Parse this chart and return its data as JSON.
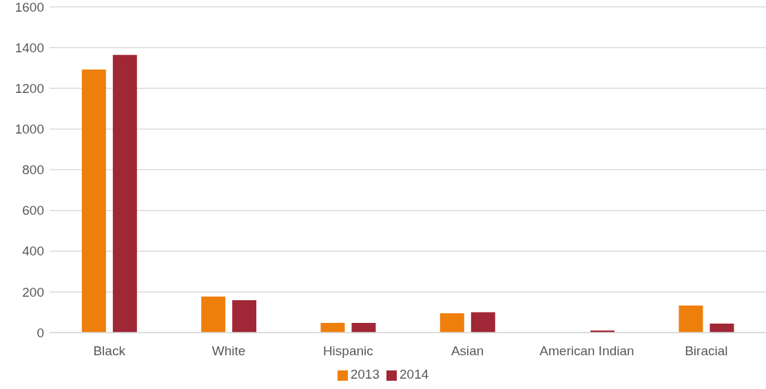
{
  "chart_data": {
    "type": "bar",
    "categories": [
      "Black",
      "White",
      "Hispanic",
      "Asian",
      "American Indian",
      "Biracial"
    ],
    "series": [
      {
        "name": "2013",
        "color": "#ee7f0b",
        "values": [
          1292,
          177,
          47,
          95,
          null,
          133
        ]
      },
      {
        "name": "2014",
        "color": "#a02736",
        "values": [
          1364,
          159,
          47,
          100,
          10,
          44
        ]
      }
    ],
    "ylim": [
      0,
      1600
    ],
    "yticks": [
      0,
      200,
      400,
      600,
      800,
      1000,
      1200,
      1400,
      1600
    ],
    "grid": "y",
    "legend": "bottom"
  }
}
